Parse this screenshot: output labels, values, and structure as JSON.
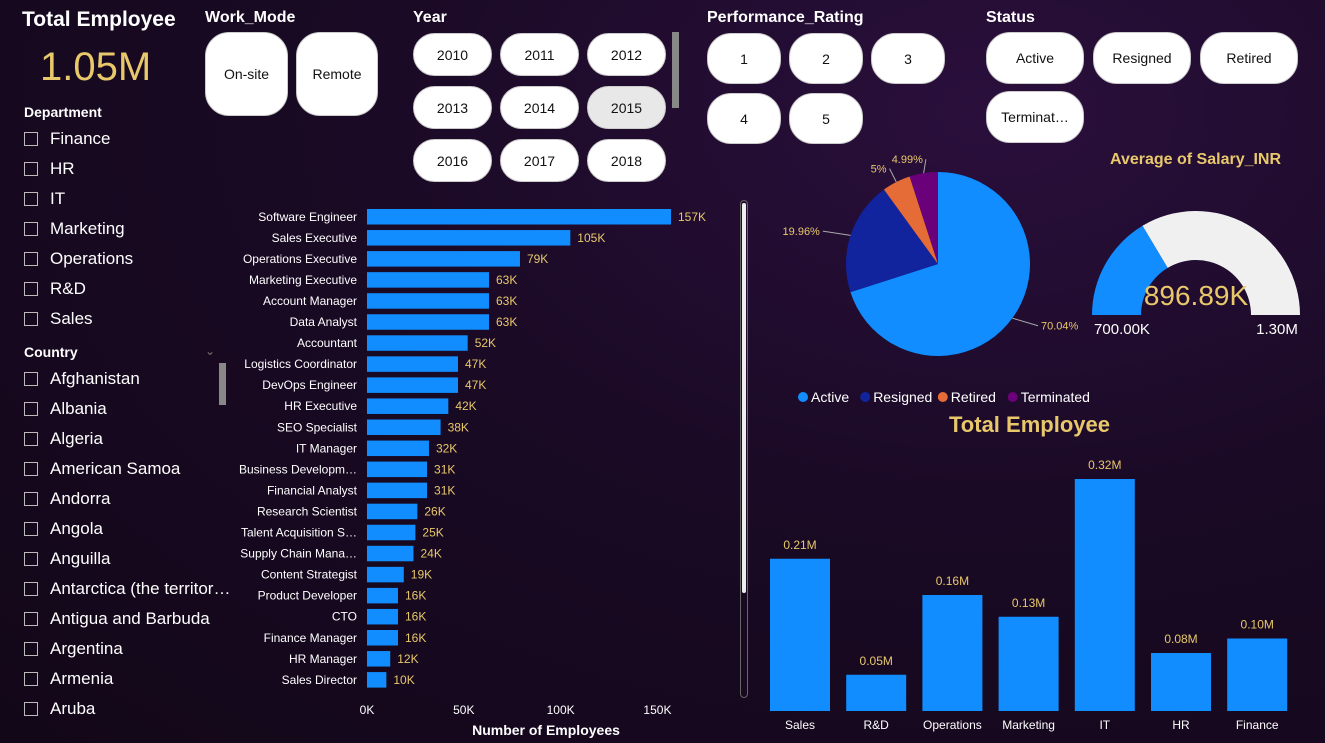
{
  "kpi": {
    "title": "Total Employee",
    "value": "1.05M"
  },
  "department_slicer": {
    "title": "Department",
    "items": [
      "Finance",
      "HR",
      "IT",
      "Marketing",
      "Operations",
      "R&D",
      "Sales"
    ]
  },
  "country_slicer": {
    "title": "Country",
    "items": [
      "Afghanistan",
      "Albania",
      "Algeria",
      "American Samoa",
      "Andorra",
      "Angola",
      "Anguilla",
      "Antarctica (the territor…",
      "Antigua and Barbuda",
      "Argentina",
      "Armenia",
      "Aruba"
    ]
  },
  "work_mode_slicer": {
    "title": "Work_Mode",
    "items": [
      "On-site",
      "Remote"
    ]
  },
  "year_slicer": {
    "title": "Year",
    "items": [
      "2010",
      "2011",
      "2012",
      "2013",
      "2014",
      "2015",
      "2016",
      "2017",
      "2018"
    ],
    "selected": "2015"
  },
  "performance_slicer": {
    "title": "Performance_Rating",
    "items": [
      "1",
      "2",
      "3",
      "4",
      "5"
    ]
  },
  "status_slicer": {
    "title": "Status",
    "items": [
      "Active",
      "Resigned",
      "Retired",
      "Terminat…"
    ]
  },
  "colors": {
    "bar": "#118dff",
    "accent": "#e8c86b",
    "active": "#118dff",
    "resigned": "#12239e",
    "retired": "#e66c37",
    "terminated": "#6b007b",
    "gauge_bg": "#f0f0f0"
  },
  "chart_data": [
    {
      "type": "bar",
      "orientation": "horizontal",
      "xlabel": "Number of Employees",
      "xticks": [
        "0K",
        "50K",
        "100K",
        "150K"
      ],
      "xlim": [
        0,
        170000
      ],
      "categories": [
        "Software Engineer",
        "Sales Executive",
        "Operations Executive",
        "Marketing Executive",
        "Account Manager",
        "Data Analyst",
        "Accountant",
        "Logistics Coordinator",
        "DevOps Engineer",
        "HR Executive",
        "SEO Specialist",
        "IT Manager",
        "Business Developm…",
        "Financial Analyst",
        "Research Scientist",
        "Talent Acquisition S…",
        "Supply Chain Mana…",
        "Content Strategist",
        "Product Developer",
        "CTO",
        "Finance Manager",
        "HR Manager",
        "Sales Director"
      ],
      "values": [
        157000,
        105000,
        79000,
        63000,
        63000,
        63000,
        52000,
        47000,
        47000,
        42000,
        38000,
        32000,
        31000,
        31000,
        26000,
        25000,
        24000,
        19000,
        16000,
        16000,
        16000,
        12000,
        10000
      ],
      "labels": [
        "157K",
        "105K",
        "79K",
        "63K",
        "63K",
        "63K",
        "52K",
        "47K",
        "47K",
        "42K",
        "38K",
        "32K",
        "31K",
        "31K",
        "26K",
        "25K",
        "24K",
        "19K",
        "16K",
        "16K",
        "16K",
        "12K",
        "10K"
      ]
    },
    {
      "type": "pie",
      "slices": [
        {
          "name": "Active",
          "value": 70.04,
          "label": "70.04%"
        },
        {
          "name": "Resigned",
          "value": 19.96,
          "label": "19.96%"
        },
        {
          "name": "Retired",
          "value": 5.0,
          "label": "5%"
        },
        {
          "name": "Terminated",
          "value": 4.99,
          "label": "4.99%"
        }
      ],
      "legend": "bottom"
    },
    {
      "type": "gauge",
      "title": "Average of Salary_INR",
      "value": 896890,
      "value_label": "896.89K",
      "min": 700000,
      "min_label": "700.00K",
      "max": 1300000,
      "max_label": "1.30M"
    },
    {
      "type": "bar",
      "title": "Total Employee",
      "categories": [
        "Sales",
        "R&D",
        "Operations",
        "Marketing",
        "IT",
        "HR",
        "Finance"
      ],
      "values": [
        0.21,
        0.05,
        0.16,
        0.13,
        0.32,
        0.08,
        0.1
      ],
      "labels": [
        "0.21M",
        "0.05M",
        "0.16M",
        "0.13M",
        "0.32M",
        "0.08M",
        "0.10M"
      ],
      "ylim": [
        0,
        0.32
      ]
    }
  ]
}
